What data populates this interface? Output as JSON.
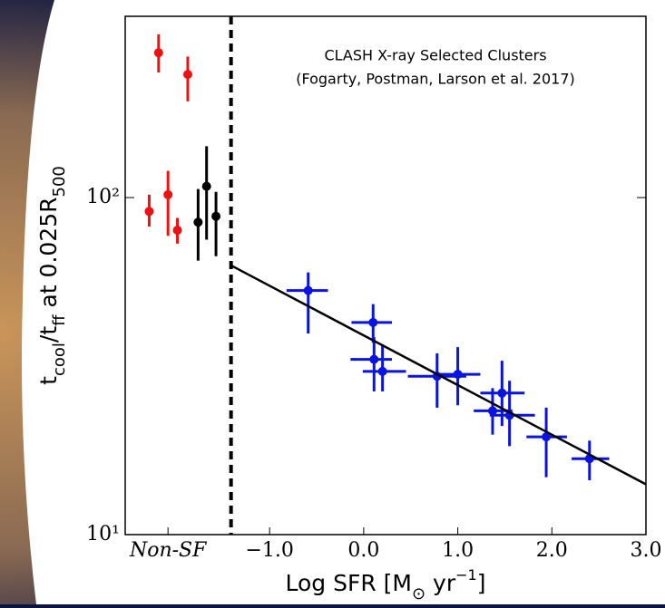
{
  "chart_data": {
    "type": "scatter",
    "annotation": [
      "CLASH X-ray Selected Clusters",
      "(Fogarty, Postman, Larson et al. 2017)"
    ],
    "xlabel": [
      {
        "text": "Log SFR [M"
      },
      {
        "text": "⊙",
        "sub": true
      },
      {
        "text": " yr"
      },
      {
        "text": "−1",
        "sup": true
      },
      {
        "text": "]"
      }
    ],
    "ylabel": [
      {
        "text": "t"
      },
      {
        "text": "cool",
        "sub": true
      },
      {
        "text": "/t"
      },
      {
        "text": "ff",
        "sub": true
      },
      {
        "text": " at 0.025R"
      },
      {
        "text": "500",
        "sub": true
      }
    ],
    "xlim": [
      -2.535,
      3.0
    ],
    "xticks": [
      {
        "value": -2.08,
        "label": "Non-SF",
        "italic": true
      },
      {
        "value": -1,
        "label": "−1.0"
      },
      {
        "value": 0,
        "label": "0.0"
      },
      {
        "value": 1,
        "label": "1.0"
      },
      {
        "value": 2,
        "label": "2.0"
      },
      {
        "value": 3,
        "label": "3.0"
      }
    ],
    "ylim": [
      10,
      345
    ],
    "log_y": true,
    "yticks": [
      {
        "value": 10,
        "label": "10¹"
      },
      {
        "value": 100,
        "label": "10²"
      }
    ],
    "vlines": [
      {
        "x": -1.41,
        "color": "#000000",
        "dashed": true
      }
    ],
    "series": [
      {
        "color": "#ee1111",
        "x": [
          -2.28,
          -2.18,
          -2.08,
          -1.98,
          -1.87
        ],
        "values": [
          91,
          269,
          102,
          80,
          232
        ],
        "y_lower": [
          82,
          235,
          77,
          73,
          193
        ],
        "y_upper": [
          102,
          305,
          120,
          87,
          262
        ]
      },
      {
        "color": "#000000",
        "x": [
          -1.76,
          -1.67,
          -1.57
        ],
        "values": [
          84.5,
          108,
          88
        ],
        "y_lower": [
          65,
          75,
          67
        ],
        "y_upper": [
          106,
          142,
          104
        ]
      },
      {
        "color": "#0a14e0",
        "x": [
          -0.59,
          0.1,
          0.11,
          0.2,
          0.78,
          1.0,
          1.37,
          1.47,
          1.55,
          1.94,
          2.4
        ],
        "values": [
          53,
          42.6,
          33.1,
          30.5,
          29.5,
          29.9,
          23.3,
          26.3,
          22.6,
          19.5,
          16.8
        ],
        "y_lower": [
          39.5,
          37.1,
          26.6,
          26.6,
          23.8,
          24.2,
          19.8,
          21,
          18.3,
          14.8,
          14.5
        ],
        "y_upper": [
          60,
          48.3,
          38.5,
          36.7,
          34.5,
          36,
          27.2,
          32.8,
          28.6,
          23.8,
          19.0
        ],
        "x_lower": [
          -0.82,
          -0.13,
          -0.14,
          -0.01,
          0.47,
          0.76,
          1.17,
          1.24,
          1.34,
          1.73,
          2.21
        ],
        "x_upper": [
          -0.38,
          0.3,
          0.3,
          0.45,
          1.09,
          1.24,
          1.58,
          1.71,
          1.82,
          2.16,
          2.61
        ]
      },
      {
        "type": "line",
        "color": "#000000",
        "x": [
          -1.41,
          3.0
        ],
        "values": [
          62.9,
          14.1
        ]
      }
    ]
  }
}
